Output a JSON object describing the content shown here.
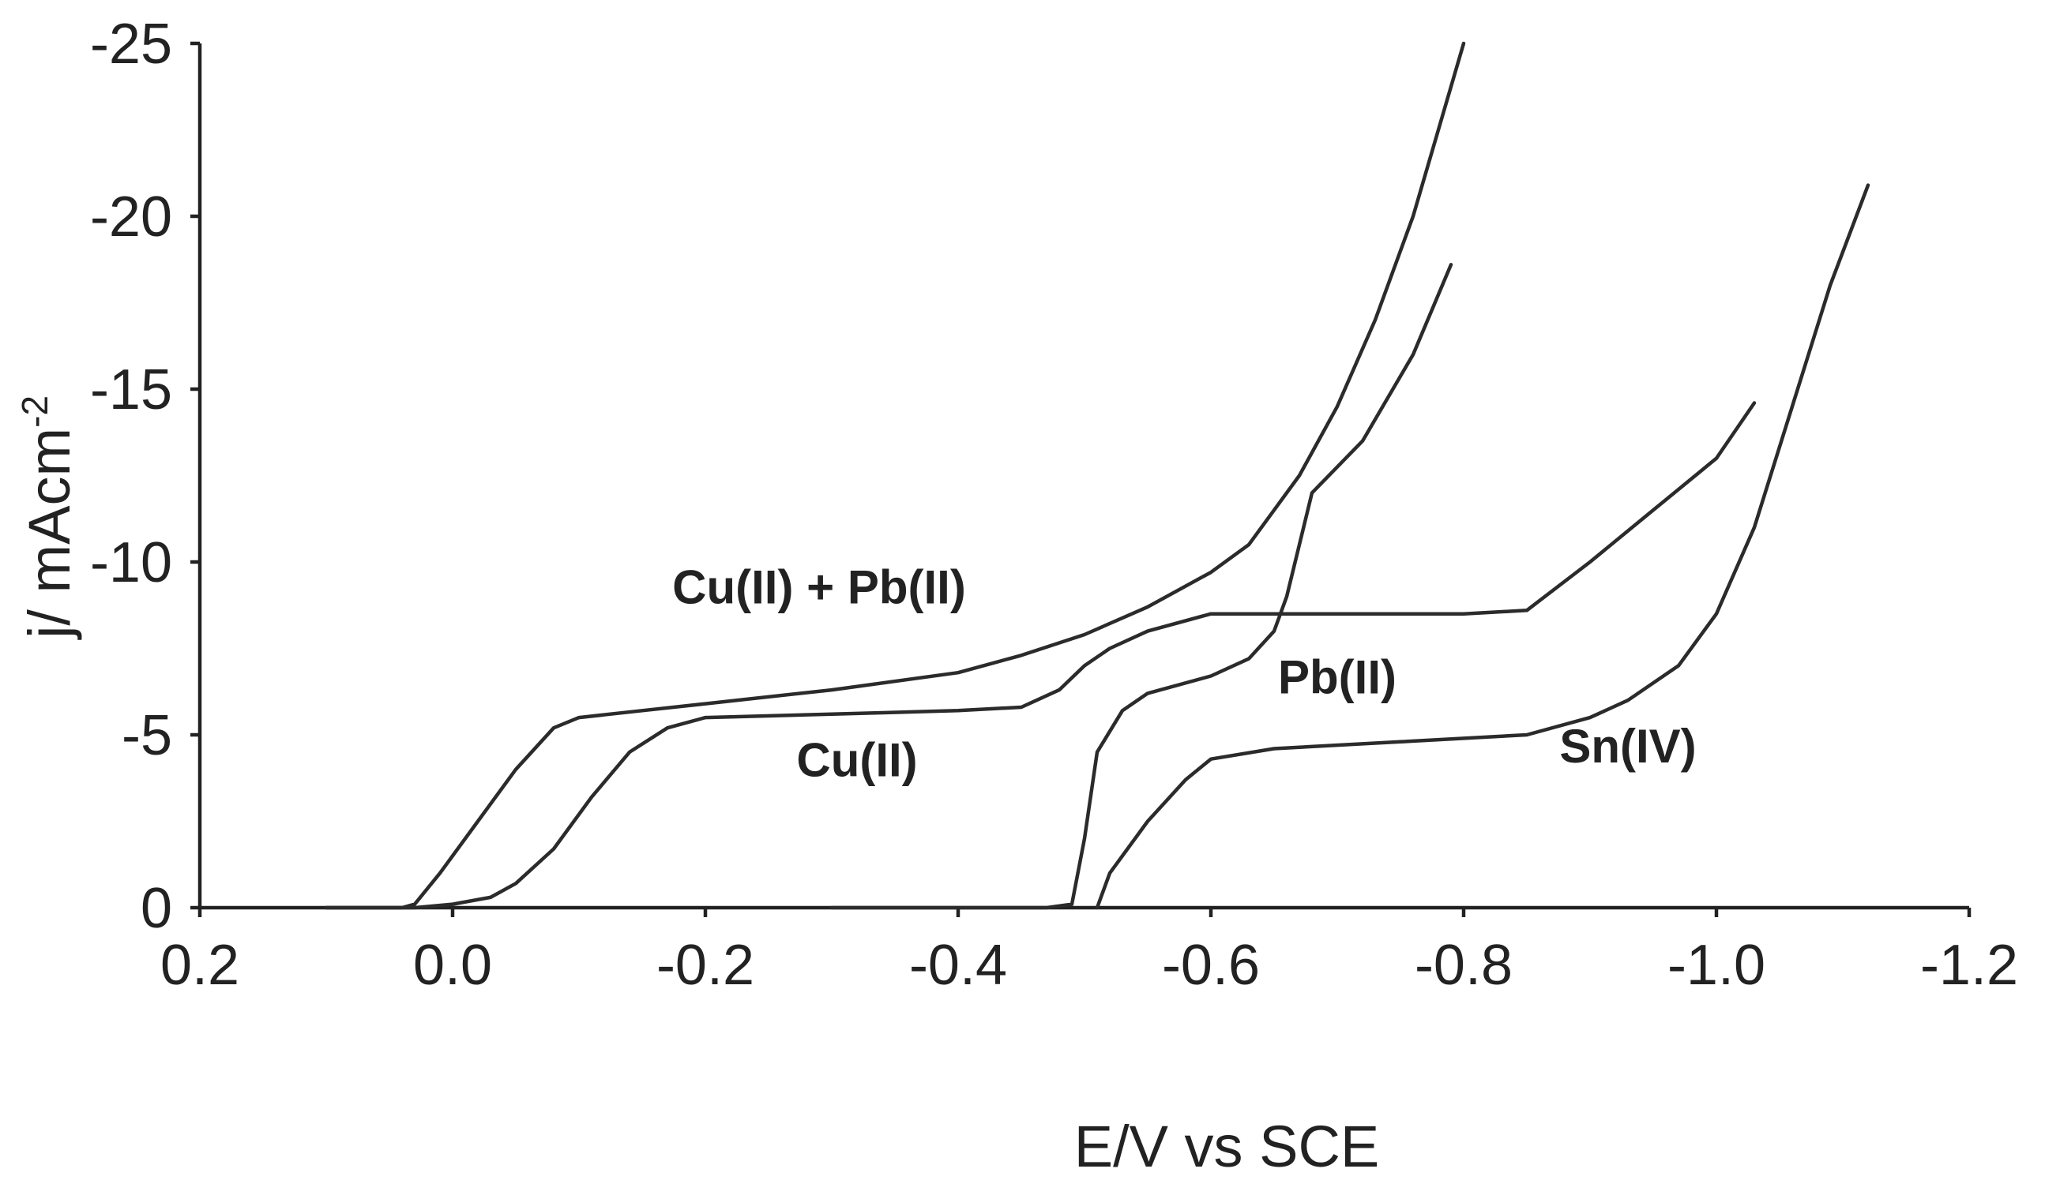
{
  "chart_data": {
    "type": "line",
    "xlabel": "E/V vs SCE",
    "ylabel": "j/ mAcm",
    "ylabel_superscript": "-2",
    "xlim": [
      0.2,
      -1.2
    ],
    "ylim": [
      0,
      -25
    ],
    "x_ticks": [
      {
        "value": 0.2,
        "label": "0.2"
      },
      {
        "value": 0.0,
        "label": "0.0"
      },
      {
        "value": -0.2,
        "label": "-0.2"
      },
      {
        "value": -0.4,
        "label": "-0.4"
      },
      {
        "value": -0.6,
        "label": "-0.6"
      },
      {
        "value": -0.8,
        "label": "-0.8"
      },
      {
        "value": -1.0,
        "label": "-1.0"
      },
      {
        "value": -1.2,
        "label": "-1.2"
      }
    ],
    "y_ticks": [
      {
        "value": 0,
        "label": "0"
      },
      {
        "value": -5,
        "label": "-5"
      },
      {
        "value": -10,
        "label": "-10"
      },
      {
        "value": -15,
        "label": "-15"
      },
      {
        "value": -20,
        "label": "-20"
      },
      {
        "value": -25,
        "label": "-25"
      }
    ],
    "grid": false,
    "legend": "none",
    "series": [
      {
        "name": "Cu(II) + Pb(II)",
        "label_at": {
          "x": -0.29,
          "y": -8.8
        },
        "points": [
          [
            0.1,
            0
          ],
          [
            0.04,
            0
          ],
          [
            0.03,
            -0.1
          ],
          [
            0.01,
            -1.0
          ],
          [
            -0.02,
            -2.5
          ],
          [
            -0.05,
            -4.0
          ],
          [
            -0.08,
            -5.2
          ],
          [
            -0.1,
            -5.5
          ],
          [
            -0.15,
            -5.7
          ],
          [
            -0.2,
            -5.9
          ],
          [
            -0.3,
            -6.3
          ],
          [
            -0.4,
            -6.8
          ],
          [
            -0.45,
            -7.3
          ],
          [
            -0.5,
            -7.9
          ],
          [
            -0.55,
            -8.7
          ],
          [
            -0.6,
            -9.7
          ],
          [
            -0.63,
            -10.5
          ],
          [
            -0.65,
            -11.5
          ],
          [
            -0.67,
            -12.5
          ],
          [
            -0.7,
            -14.5
          ],
          [
            -0.73,
            -17.0
          ],
          [
            -0.76,
            -20.0
          ],
          [
            -0.78,
            -22.5
          ],
          [
            -0.8,
            -25.0
          ]
        ]
      },
      {
        "name": "Cu(II)",
        "label_at": {
          "x": -0.32,
          "y": -3.8
        },
        "points": [
          [
            0.1,
            0
          ],
          [
            0.03,
            0
          ],
          [
            0.0,
            -0.1
          ],
          [
            -0.03,
            -0.3
          ],
          [
            -0.05,
            -0.7
          ],
          [
            -0.08,
            -1.7
          ],
          [
            -0.11,
            -3.2
          ],
          [
            -0.14,
            -4.5
          ],
          [
            -0.17,
            -5.2
          ],
          [
            -0.2,
            -5.5
          ],
          [
            -0.3,
            -5.6
          ],
          [
            -0.4,
            -5.7
          ],
          [
            -0.45,
            -5.8
          ],
          [
            -0.48,
            -6.3
          ],
          [
            -0.5,
            -7.0
          ],
          [
            -0.52,
            -7.5
          ],
          [
            -0.55,
            -8.0
          ],
          [
            -0.6,
            -8.5
          ],
          [
            -0.7,
            -8.5
          ],
          [
            -0.8,
            -8.5
          ],
          [
            -0.85,
            -8.6
          ],
          [
            -0.9,
            -10.0
          ],
          [
            -0.95,
            -11.5
          ],
          [
            -1.0,
            -13.0
          ],
          [
            -1.03,
            -14.6
          ]
        ]
      },
      {
        "name": "Pb(II)",
        "label_at": {
          "x": -0.7,
          "y": -6.2
        },
        "points": [
          [
            -0.3,
            0
          ],
          [
            -0.47,
            0
          ],
          [
            -0.49,
            -0.1
          ],
          [
            -0.5,
            -2.0
          ],
          [
            -0.51,
            -4.5
          ],
          [
            -0.53,
            -5.7
          ],
          [
            -0.55,
            -6.2
          ],
          [
            -0.6,
            -6.7
          ],
          [
            -0.63,
            -7.2
          ],
          [
            -0.65,
            -8.0
          ],
          [
            -0.66,
            -9.0
          ],
          [
            -0.67,
            -10.5
          ],
          [
            -0.68,
            -12.0
          ],
          [
            -0.72,
            -13.5
          ],
          [
            -0.76,
            -16.0
          ],
          [
            -0.79,
            -18.6
          ]
        ]
      },
      {
        "name": "Sn(IV)",
        "label_at": {
          "x": -0.93,
          "y": -4.2
        },
        "points": [
          [
            -0.51,
            0
          ],
          [
            -0.52,
            -1.0
          ],
          [
            -0.55,
            -2.5
          ],
          [
            -0.58,
            -3.7
          ],
          [
            -0.6,
            -4.3
          ],
          [
            -0.65,
            -4.6
          ],
          [
            -0.75,
            -4.8
          ],
          [
            -0.85,
            -5.0
          ],
          [
            -0.9,
            -5.5
          ],
          [
            -0.93,
            -6.0
          ],
          [
            -0.97,
            -7.0
          ],
          [
            -1.0,
            -8.5
          ],
          [
            -1.03,
            -11.0
          ],
          [
            -1.06,
            -14.5
          ],
          [
            -1.09,
            -18.0
          ],
          [
            -1.12,
            -20.9
          ]
        ]
      }
    ]
  }
}
